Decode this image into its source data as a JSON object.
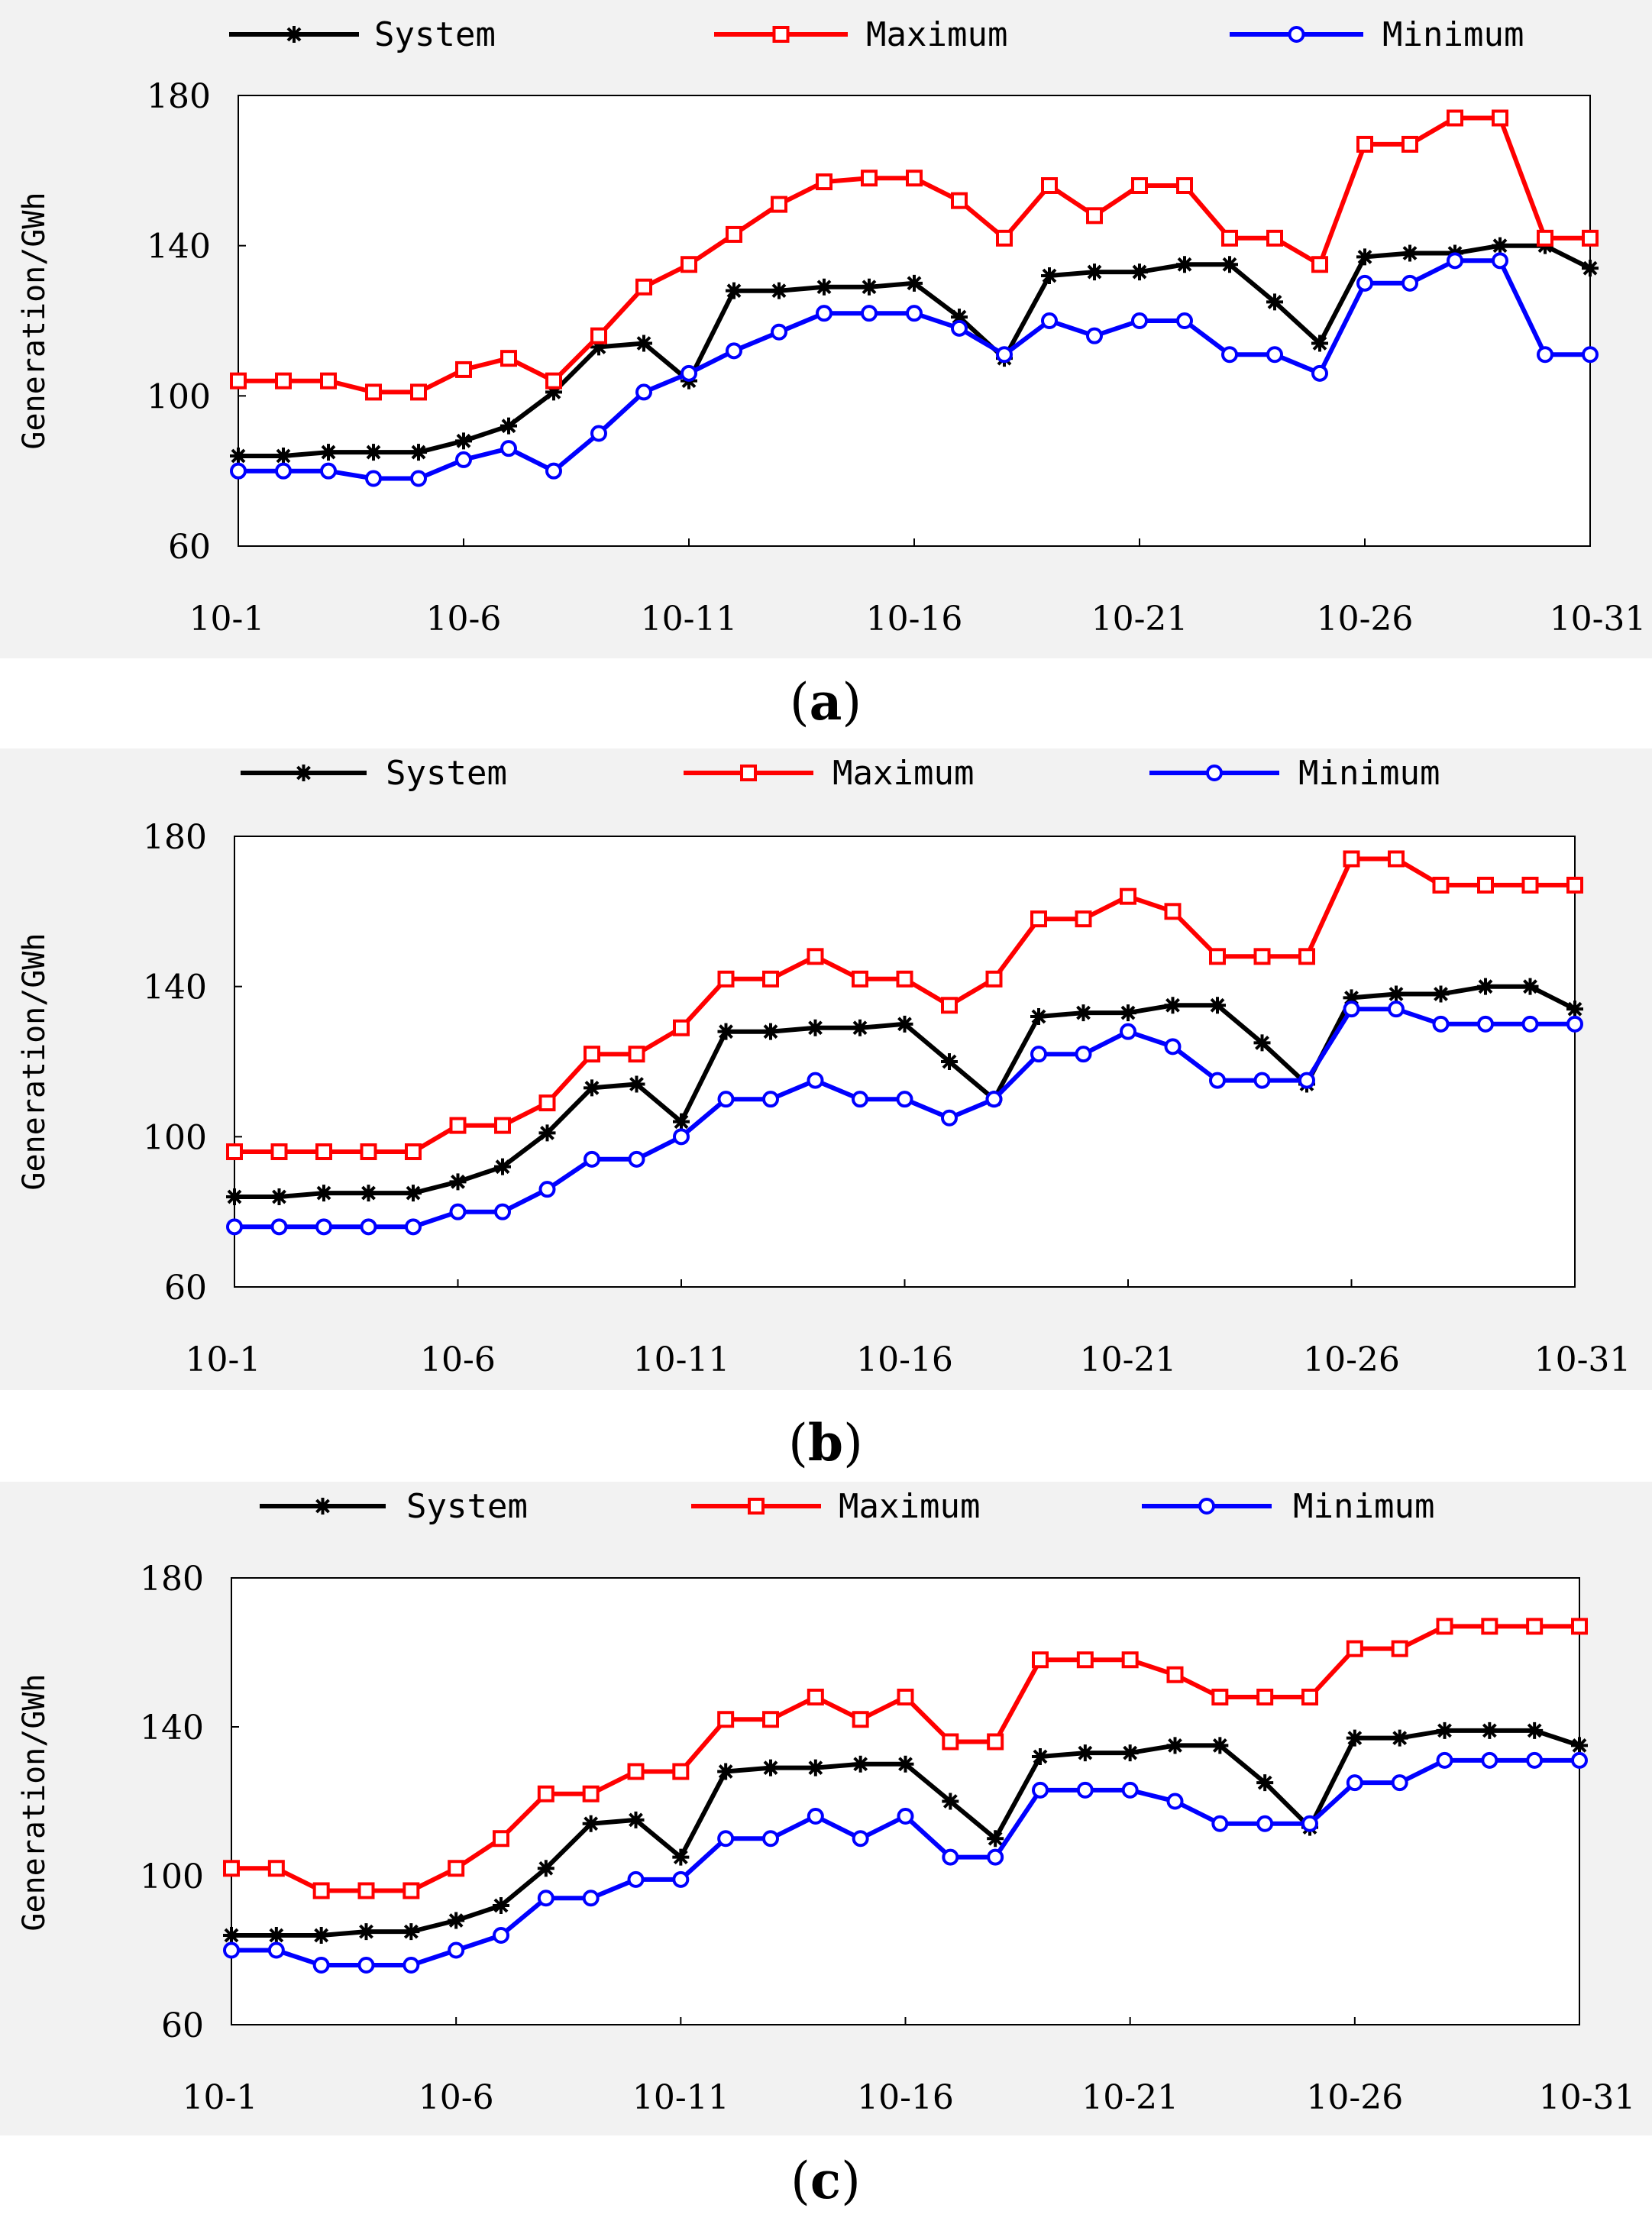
{
  "chart_data": [
    {
      "type": "line",
      "panel_label": {
        "open": "(",
        "letter": "a",
        "close": ")"
      },
      "ylabel": "Generation/GWh",
      "ylim": [
        60,
        180
      ],
      "yticks": [
        "60",
        "100",
        "140",
        "180"
      ],
      "xtick_labels": [
        "10-1",
        "10-6",
        "10-11",
        "10-16",
        "10-21",
        "10-26",
        "10-31"
      ],
      "days": 31,
      "series": [
        {
          "name": "System",
          "color": "#000000",
          "marker": "asterisk",
          "values": [
            84,
            84,
            85,
            85,
            85,
            88,
            92,
            101,
            113,
            114,
            104,
            128,
            128,
            129,
            129,
            130,
            121,
            110,
            132,
            133,
            133,
            135,
            135,
            125,
            114,
            137,
            138,
            138,
            140,
            140,
            134
          ]
        },
        {
          "name": "Maximum",
          "color": "#ff0000",
          "marker": "square",
          "values": [
            104,
            104,
            104,
            101,
            101,
            107,
            110,
            104,
            116,
            129,
            135,
            143,
            151,
            157,
            158,
            158,
            152,
            142,
            156,
            148,
            156,
            156,
            142,
            142,
            135,
            167,
            167,
            174,
            174,
            142,
            142
          ]
        },
        {
          "name": "Minimum",
          "color": "#0000ff",
          "marker": "circle",
          "values": [
            80,
            80,
            80,
            78,
            78,
            83,
            86,
            80,
            90,
            101,
            106,
            112,
            117,
            122,
            122,
            122,
            118,
            111,
            120,
            116,
            120,
            120,
            111,
            111,
            106,
            130,
            130,
            136,
            136,
            111,
            111
          ]
        }
      ]
    },
    {
      "type": "line",
      "panel_label": {
        "open": "(",
        "letter": "b",
        "close": ")"
      },
      "ylabel": "Generation/GWh",
      "ylim": [
        60,
        180
      ],
      "yticks": [
        "60",
        "100",
        "140",
        "180"
      ],
      "xtick_labels": [
        "10-1",
        "10-6",
        "10-11",
        "10-16",
        "10-21",
        "10-26",
        "10-31"
      ],
      "days": 31,
      "series": [
        {
          "name": "System",
          "color": "#000000",
          "marker": "asterisk",
          "values": [
            84,
            84,
            85,
            85,
            85,
            88,
            92,
            101,
            113,
            114,
            104,
            128,
            128,
            129,
            129,
            130,
            120,
            110,
            132,
            133,
            133,
            135,
            135,
            125,
            114,
            137,
            138,
            138,
            140,
            140,
            134
          ]
        },
        {
          "name": "Maximum",
          "color": "#ff0000",
          "marker": "square",
          "values": [
            96,
            96,
            96,
            96,
            96,
            103,
            103,
            109,
            122,
            122,
            129,
            142,
            142,
            148,
            142,
            142,
            135,
            142,
            158,
            158,
            164,
            160,
            148,
            148,
            148,
            174,
            174,
            167,
            167,
            167,
            167
          ]
        },
        {
          "name": "Minimum",
          "color": "#0000ff",
          "marker": "circle",
          "values": [
            76,
            76,
            76,
            76,
            76,
            80,
            80,
            86,
            94,
            94,
            100,
            110,
            110,
            115,
            110,
            110,
            105,
            110,
            122,
            122,
            128,
            124,
            115,
            115,
            115,
            134,
            134,
            130,
            130,
            130,
            130
          ]
        }
      ]
    },
    {
      "type": "line",
      "panel_label": {
        "open": "(",
        "letter": "c",
        "close": ")"
      },
      "ylabel": "Generation/GWh",
      "ylim": [
        60,
        180
      ],
      "yticks": [
        "60",
        "100",
        "140",
        "180"
      ],
      "xtick_labels": [
        "10-1",
        "10-6",
        "10-11",
        "10-16",
        "10-21",
        "10-26",
        "10-31"
      ],
      "days": 31,
      "series": [
        {
          "name": "System",
          "color": "#000000",
          "marker": "asterisk",
          "values": [
            84,
            84,
            84,
            85,
            85,
            88,
            92,
            102,
            114,
            115,
            105,
            128,
            129,
            129,
            130,
            130,
            120,
            110,
            132,
            133,
            133,
            135,
            135,
            125,
            113,
            137,
            137,
            139,
            139,
            139,
            135
          ]
        },
        {
          "name": "Maximum",
          "color": "#ff0000",
          "marker": "square",
          "values": [
            102,
            102,
            96,
            96,
            96,
            102,
            110,
            122,
            122,
            128,
            128,
            142,
            142,
            148,
            142,
            148,
            136,
            136,
            158,
            158,
            158,
            154,
            148,
            148,
            148,
            161,
            161,
            167,
            167,
            167,
            167
          ]
        },
        {
          "name": "Minimum",
          "color": "#0000ff",
          "marker": "circle",
          "values": [
            80,
            80,
            76,
            76,
            76,
            80,
            84,
            94,
            94,
            99,
            99,
            110,
            110,
            116,
            110,
            116,
            105,
            105,
            123,
            123,
            123,
            120,
            114,
            114,
            114,
            125,
            125,
            131,
            131,
            131,
            131
          ]
        }
      ]
    }
  ]
}
